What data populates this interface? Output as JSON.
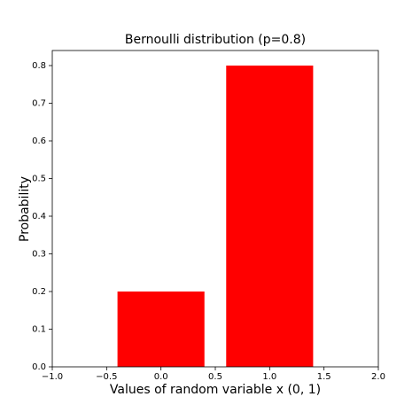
{
  "chart_data": {
    "type": "bar",
    "title": "Bernoulli distribution (p=0.8)",
    "x_label": "Values of random variable x (0, 1)",
    "y_label": "Probability",
    "x": [
      0,
      1
    ],
    "values": [
      0.2,
      0.8
    ],
    "color": "#ff0000",
    "xlim": [
      -1,
      2
    ],
    "xticks": [
      {
        "value": -1,
        "label": "−1.0"
      },
      {
        "value": -0.5,
        "label": "−0.5"
      },
      {
        "value": 0,
        "label": "0.0"
      },
      0.5,
      {
        "value": 1,
        "label": "1.0"
      },
      1.5,
      {
        "value": 2,
        "label": "2.0"
      }
    ],
    "ylim": [
      0,
      0.84
    ],
    "yticks": [
      {
        "value": 0,
        "label": "0.0"
      },
      0.1,
      0.2,
      0.3,
      0.4,
      0.5,
      0.6,
      0.7,
      0.8
    ],
    "grid": false
  }
}
